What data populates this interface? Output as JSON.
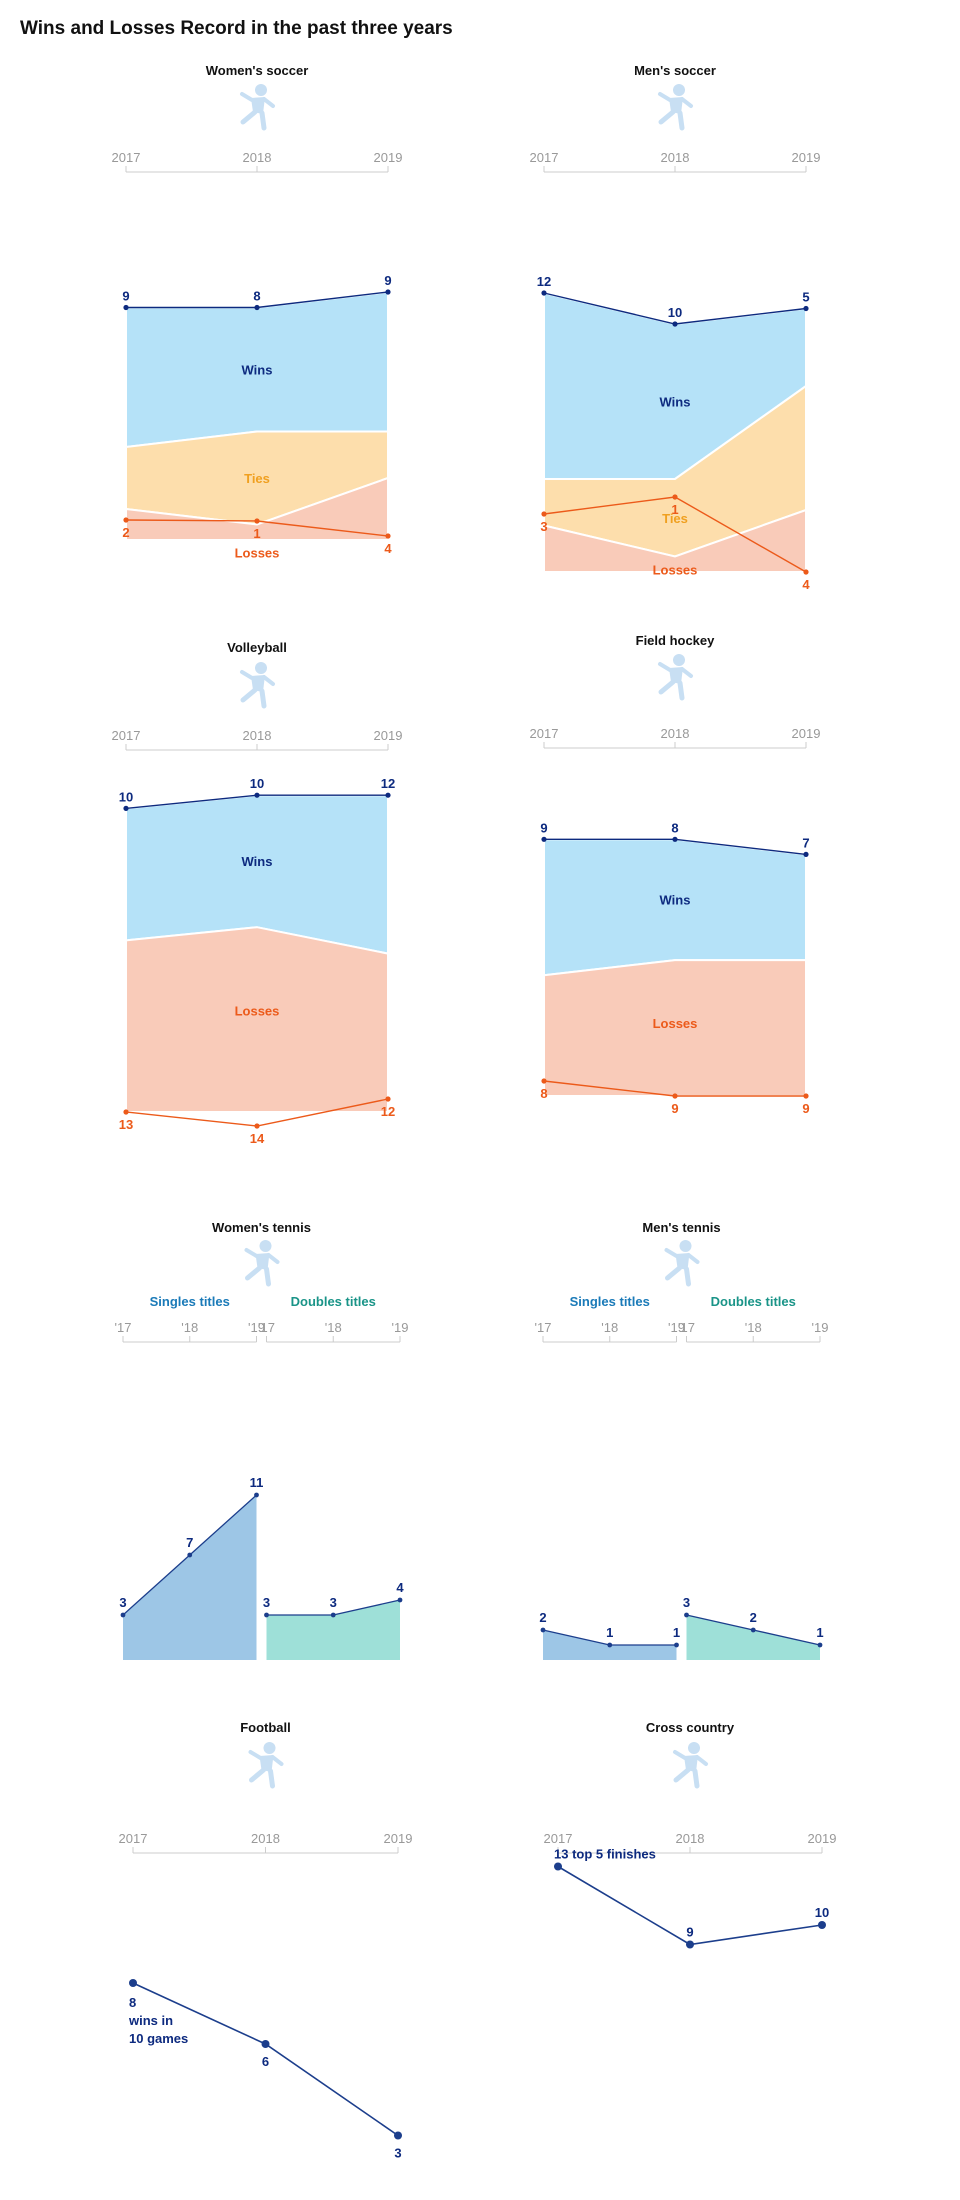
{
  "page": {
    "title": "Wins and Losses Record in the past three years"
  },
  "colors": {
    "wins_fill": "#b5e2f8",
    "wins_text": "#0d2a7f",
    "ties_fill": "#fddeac",
    "ties_text": "#f0a020",
    "losses_fill": "#f9cbb9",
    "losses_text": "#ec5a1a",
    "singles_fill": "#9dc6e6",
    "singles_text": "#1a7ab8",
    "doubles_fill": "#9ee0d8",
    "doubles_text": "#1a9488",
    "icon": "#c8dff3",
    "axis": "#cccccc",
    "tick_text": "#999999"
  },
  "chart_data": [
    {
      "type": "area",
      "title": "Women's soccer",
      "icon": "soccer-player-icon",
      "x": [
        "2017",
        "2018",
        "2019"
      ],
      "series": [
        {
          "name": "Wins",
          "values": [
            9,
            8,
            9
          ]
        },
        {
          "name": "Ties",
          "values": [
            4,
            6,
            3
          ]
        },
        {
          "name": "Losses",
          "values": [
            2,
            1,
            4
          ]
        }
      ]
    },
    {
      "type": "area",
      "title": "Men's soccer",
      "icon": "soccer-player-icon",
      "x": [
        "2017",
        "2018",
        "2019"
      ],
      "series": [
        {
          "name": "Wins",
          "values": [
            12,
            10,
            5
          ]
        },
        {
          "name": "Ties",
          "values": [
            3,
            5,
            8
          ]
        },
        {
          "name": "Losses",
          "values": [
            3,
            1,
            4
          ]
        }
      ]
    },
    {
      "type": "area",
      "title": "Volleyball",
      "icon": "volleyball-player-icon",
      "x": [
        "2017",
        "2018",
        "2019"
      ],
      "series": [
        {
          "name": "Wins",
          "values": [
            10,
            10,
            12
          ]
        },
        {
          "name": "Losses",
          "values": [
            13,
            14,
            12
          ]
        }
      ]
    },
    {
      "type": "area",
      "title": "Field hockey",
      "icon": "field-hockey-player-icon",
      "x": [
        "2017",
        "2018",
        "2019"
      ],
      "series": [
        {
          "name": "Wins",
          "values": [
            9,
            8,
            7
          ]
        },
        {
          "name": "Losses",
          "values": [
            8,
            9,
            9
          ]
        }
      ]
    },
    {
      "type": "area",
      "title": "Women's tennis",
      "icon": "tennis-player-icon",
      "x": [
        "'17",
        "'18",
        "'19"
      ],
      "series": [
        {
          "name": "Singles titles",
          "values": [
            3,
            7,
            11
          ]
        },
        {
          "name": "Doubles titles",
          "values": [
            3,
            3,
            4
          ]
        }
      ]
    },
    {
      "type": "area",
      "title": "Men's tennis",
      "icon": "tennis-player-icon",
      "x": [
        "'17",
        "'18",
        "'19"
      ],
      "series": [
        {
          "name": "Singles titles",
          "values": [
            2,
            1,
            1
          ]
        },
        {
          "name": "Doubles titles",
          "values": [
            3,
            2,
            1
          ]
        }
      ]
    },
    {
      "type": "line",
      "title": "Football",
      "icon": "football-player-icon",
      "x": [
        "2017",
        "2018",
        "2019"
      ],
      "series": [
        {
          "values": [
            8,
            6,
            3
          ]
        }
      ],
      "annotation": "wins in 10 games"
    },
    {
      "type": "line",
      "title": "Cross country",
      "icon": "runner-icon",
      "x": [
        "2017",
        "2018",
        "2019"
      ],
      "series": [
        {
          "values": [
            13,
            9,
            10
          ]
        }
      ],
      "annotation": "top 5 finishes"
    }
  ]
}
